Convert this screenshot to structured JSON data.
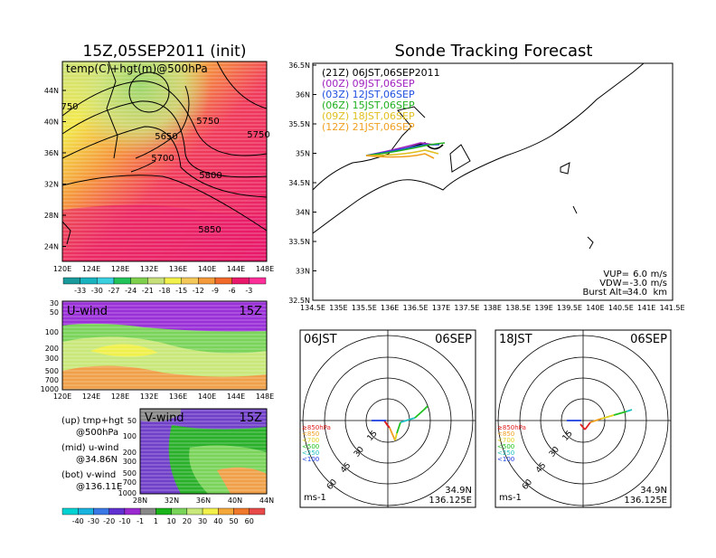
{
  "left_title": "15Z,05SEP2011 (init)",
  "right_title": "Sonde Tracking Forecast",
  "map500": {
    "label": "temp(C)+hgt(m)@500hPa",
    "lat_ticks": [
      "44N",
      "40N",
      "36N",
      "32N",
      "28N",
      "24N"
    ],
    "lon_ticks": [
      "120E",
      "124E",
      "128E",
      "132E",
      "136E",
      "140E",
      "144E",
      "148E"
    ],
    "contour_labels": [
      "750",
      "5750",
      "5650",
      "5700",
      "5750",
      "5800",
      "5850"
    ],
    "colorbar_labels": [
      "-33",
      "-30",
      "-27",
      "-24",
      "-21",
      "-18",
      "-15",
      "-12",
      "-9",
      "-6",
      "-3"
    ],
    "colorbar_colors": [
      "#1a9a9a",
      "#19b3c0",
      "#3ad0e0",
      "#22c45a",
      "#7fd14d",
      "#c8e07a",
      "#f2f04a",
      "#f5c85a",
      "#f59a3a",
      "#f26a2a",
      "#e8186a",
      "#ff2f9a"
    ]
  },
  "uwind": {
    "label": "U-wind",
    "time": "15Z",
    "p_ticks": [
      "30",
      "50",
      "100",
      "200",
      "300",
      "500",
      "700",
      "1000"
    ],
    "lon_ticks": [
      "120E",
      "124E",
      "128E",
      "132E",
      "136E",
      "140E",
      "144E",
      "148E"
    ]
  },
  "vwind": {
    "label": "V-wind",
    "time": "15Z",
    "p_ticks": [
      "50",
      "100",
      "200",
      "300",
      "500",
      "700",
      "1000"
    ],
    "lat_ticks": [
      "28N",
      "32N",
      "36N",
      "40N",
      "44N"
    ],
    "colorbar_labels": [
      "-40",
      "-30",
      "-20",
      "-10",
      "-1",
      "1",
      "10",
      "20",
      "30",
      "40",
      "50",
      "60"
    ],
    "colorbar_colors": [
      "#00d2d2",
      "#19b3e0",
      "#3a78e6",
      "#6030d0",
      "#9a2ad0",
      "#888888",
      "#1ab41a",
      "#7ad45a",
      "#c8e87a",
      "#f2f04a",
      "#f5a83a",
      "#f0782a",
      "#e84a4a"
    ]
  },
  "notes": [
    {
      "line1": "(up) tmp+hgt",
      "line2": "@500hPa"
    },
    {
      "line1": "(mid) u-wind",
      "line2": "@34.86N"
    },
    {
      "line1": "(bot) v-wind",
      "line2": "@136.11E"
    }
  ],
  "track_map": {
    "lat_ticks": [
      "36.5N",
      "36N",
      "35.5N",
      "35N",
      "34.5N",
      "34N",
      "33.5N",
      "33N",
      "32.5N"
    ],
    "lon_ticks": [
      "134.5E",
      "135E",
      "135.5E",
      "136E",
      "136.5E",
      "137E",
      "137.5E",
      "138E",
      "138.5E",
      "139E",
      "139.5E",
      "140E",
      "140.5E",
      "141E",
      "141.5E"
    ],
    "legend": [
      {
        "text": "(21Z)  06JST,06SEP2011",
        "color": "#000000"
      },
      {
        "text": "(00Z)  09JST,06SEP",
        "color": "#a020c0"
      },
      {
        "text": "(03Z)  12JST,06SEP",
        "color": "#2050e0"
      },
      {
        "text": "(06Z)  15JST,06SEP",
        "color": "#20b020"
      },
      {
        "text": "(09Z)  18JST,06SEP",
        "color": "#e0c020"
      },
      {
        "text": "(12Z)  21JST,06SEP",
        "color": "#f0a020"
      }
    ],
    "params": [
      {
        "label": "VUP=",
        "value": "6.0",
        "unit": "m/s"
      },
      {
        "label": "VDW=",
        "value": "-3.0",
        "unit": "m/s"
      },
      {
        "label": "Burst Alt=",
        "value": "34.0",
        "unit": "km"
      }
    ]
  },
  "hodographs": [
    {
      "left": "06JST",
      "right": "06SEP",
      "units": "ms-1",
      "lat": "34.9N",
      "lon": "136.125E",
      "ring_labels": [
        "15",
        "30",
        "45",
        "60"
      ],
      "levels": [
        {
          "text": "≥850hPa",
          "color": "#e02020"
        },
        {
          "text": "<850",
          "color": "#f0a020"
        },
        {
          "text": "<700",
          "color": "#e0d020"
        },
        {
          "text": "<500",
          "color": "#20c020"
        },
        {
          "text": "<250",
          "color": "#20c0c0"
        },
        {
          "text": "<100",
          "color": "#2040e0"
        }
      ]
    },
    {
      "left": "18JST",
      "right": "06SEP",
      "units": "ms-1",
      "lat": "34.9N",
      "lon": "136.125E",
      "ring_labels": [
        "15",
        "30",
        "45",
        "60"
      ],
      "levels": [
        {
          "text": "≥850hPa",
          "color": "#e02020"
        },
        {
          "text": "<850",
          "color": "#f0a020"
        },
        {
          "text": "<700",
          "color": "#e0d020"
        },
        {
          "text": "<500",
          "color": "#20c020"
        },
        {
          "text": "<250",
          "color": "#20c0c0"
        },
        {
          "text": "<100",
          "color": "#2040e0"
        }
      ]
    }
  ]
}
